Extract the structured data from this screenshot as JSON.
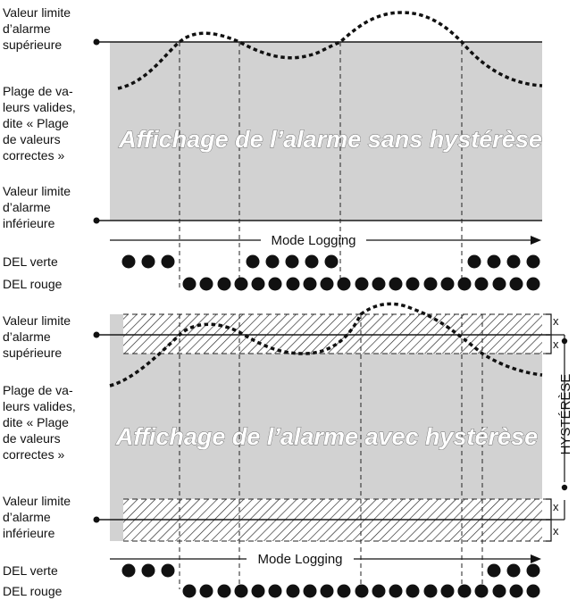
{
  "top": {
    "upper_label": [
      "Valeur limite",
      "d’alarme",
      "supérieure"
    ],
    "range_label": [
      "Plage de va-",
      "leurs valides,",
      "dite « Plage",
      "de valeurs",
      "correctes »"
    ],
    "lower_label": [
      "Valeur limite",
      "d’alarme",
      "inférieure"
    ],
    "title": "Affichage de l’alarme sans hystérèse",
    "mode": "Mode Logging",
    "green_label": "DEL verte",
    "red_label": "DEL rouge"
  },
  "bottom": {
    "upper_label": [
      "Valeur limite",
      "d’alarme",
      "supérieure"
    ],
    "range_label": [
      "Plage de va-",
      "leurs valides,",
      "dite « Plage",
      "de valeurs",
      "correctes »"
    ],
    "lower_label": [
      "Valeur limite",
      "d’alarme",
      "inférieure"
    ],
    "title": "Affichage de l’alarme avec hystérèse",
    "mode": "Mode Logging",
    "green_label": "DEL verte",
    "red_label": "DEL rouge",
    "hysteresis": "HYSTÉRÈSE",
    "x_mark": "x"
  },
  "colors": {
    "band": "#d2d2d2",
    "line": "#1a1a1a",
    "led": "#111111"
  }
}
